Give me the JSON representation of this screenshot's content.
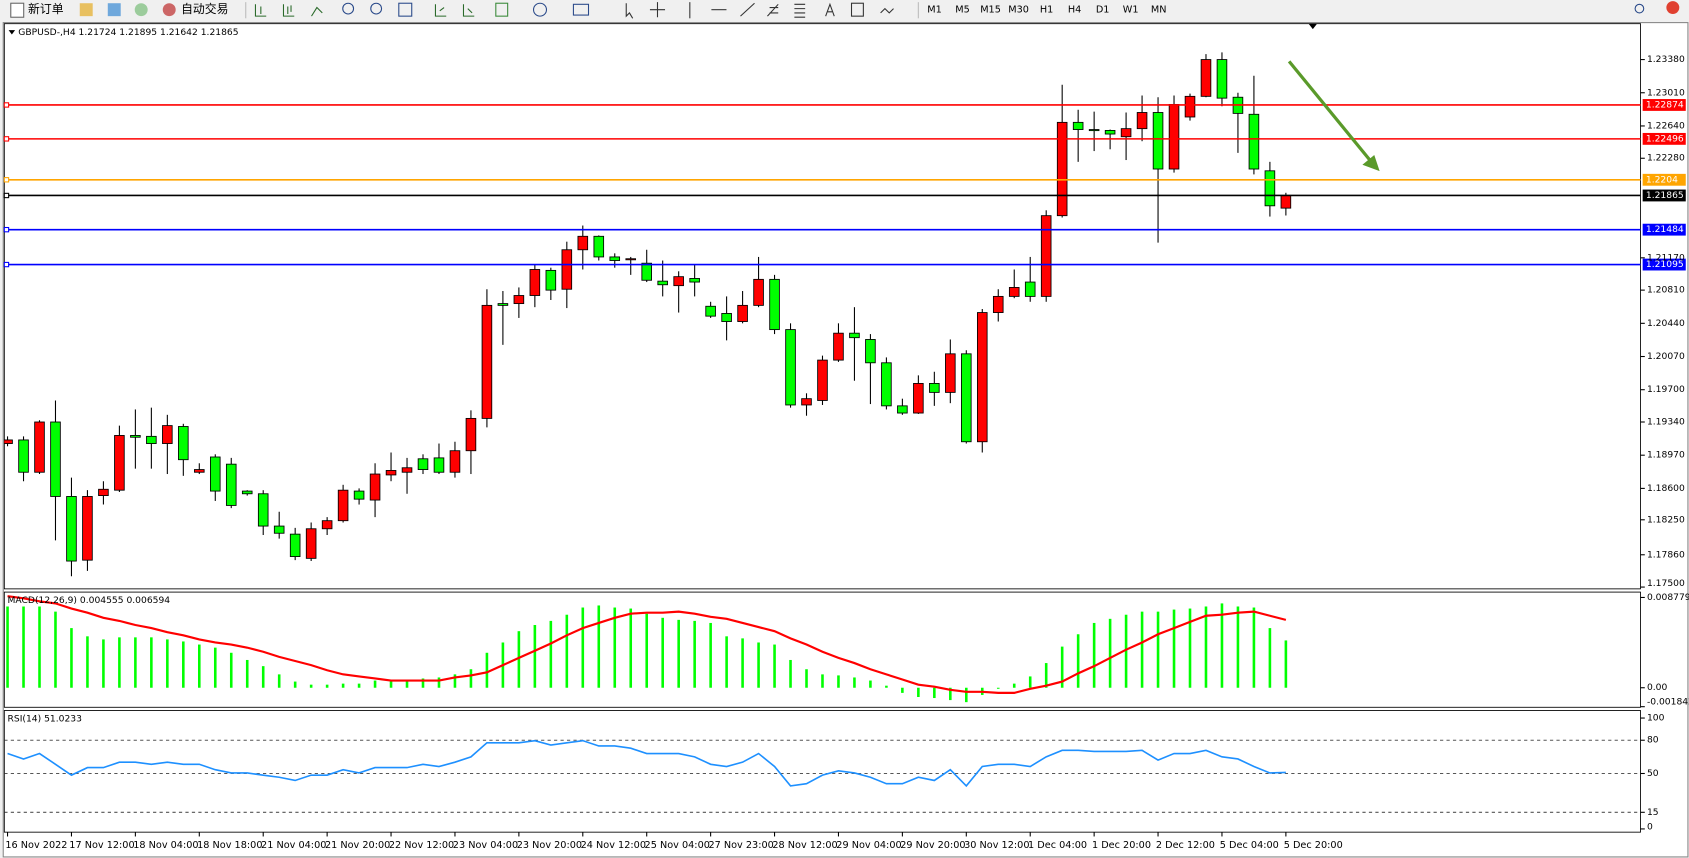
{
  "toolbar": {
    "buttons": [
      "新订单",
      "自动交易"
    ],
    "timeframes": [
      "M1",
      "M5",
      "M15",
      "M30",
      "H1",
      "H4",
      "D1",
      "W1",
      "MN"
    ]
  },
  "chart_data": [
    {
      "type": "candlestick",
      "title": "GBPUSD-,H4  1.21724 1.21895 1.21642 1.21865",
      "categories": [
        "16 Nov 2022",
        null,
        null,
        null,
        "17 Nov 12:00",
        null,
        null,
        null,
        "18 Nov 04:00",
        null,
        null,
        null,
        "18 Nov 18:00",
        null,
        null,
        null,
        "21 Nov 04:00",
        null,
        null,
        null,
        "21 Nov 20:00",
        null,
        null,
        null,
        "22 Nov 12:00",
        null,
        null,
        null,
        "23 Nov 04:00",
        null,
        null,
        null,
        "23 Nov 20:00",
        null,
        null,
        null,
        "24 Nov 12:00",
        null,
        null,
        null,
        "25 Nov 04:00",
        null,
        null,
        null,
        "27 Nov 23:00",
        null,
        null,
        null,
        "28 Nov 12:00",
        null,
        null,
        null,
        "29 Nov 04:00",
        null,
        null,
        null,
        "29 Nov 20:00",
        null,
        null,
        null,
        "30 Nov 12:00",
        null,
        null,
        null,
        "1 Dec 04:00",
        null,
        null,
        null,
        "1 Dec 20:00",
        null,
        null,
        null,
        "2 Dec 12:00",
        null,
        null,
        null,
        "5 Dec 04:00",
        null,
        null,
        null,
        "5 Dec 20:00"
      ],
      "ohlc": [
        [
          1.191,
          1.1918,
          1.1907,
          1.1914
        ],
        [
          1.1914,
          1.1918,
          1.1868,
          1.1878
        ],
        [
          1.1878,
          1.1936,
          1.1876,
          1.1934
        ],
        [
          1.1934,
          1.1958,
          1.1802,
          1.1851
        ],
        [
          1.1851,
          1.1872,
          1.1762,
          1.1779
        ],
        [
          1.178,
          1.1858,
          1.1768,
          1.1851
        ],
        [
          1.1852,
          1.1868,
          1.1842,
          1.1859
        ],
        [
          1.1858,
          1.193,
          1.1856,
          1.1919
        ],
        [
          1.1919,
          1.1948,
          1.1882,
          1.1917
        ],
        [
          1.1918,
          1.195,
          1.1882,
          1.191
        ],
        [
          1.191,
          1.1942,
          1.1876,
          1.193
        ],
        [
          1.1929,
          1.1932,
          1.1874,
          1.1892
        ],
        [
          1.1878,
          1.1888,
          1.1876,
          1.1881
        ],
        [
          1.1895,
          1.1898,
          1.1846,
          1.1857
        ],
        [
          1.1887,
          1.1894,
          1.1838,
          1.1841
        ],
        [
          1.1857,
          1.1858,
          1.1852,
          1.1854
        ],
        [
          1.1854,
          1.1858,
          1.1808,
          1.1818
        ],
        [
          1.1818,
          1.1834,
          1.1804,
          1.181
        ],
        [
          1.1809,
          1.1816,
          1.178,
          1.1784
        ],
        [
          1.1782,
          1.1822,
          1.1779,
          1.1815
        ],
        [
          1.1815,
          1.1828,
          1.1808,
          1.1824
        ],
        [
          1.1824,
          1.1864,
          1.1822,
          1.1858
        ],
        [
          1.1857,
          1.186,
          1.1842,
          1.1848
        ],
        [
          1.1847,
          1.1888,
          1.1828,
          1.1876
        ],
        [
          1.1875,
          1.19,
          1.1868,
          1.188
        ],
        [
          1.1878,
          1.1894,
          1.1854,
          1.1883
        ],
        [
          1.1893,
          1.1898,
          1.1876,
          1.1881
        ],
        [
          1.1894,
          1.191,
          1.1876,
          1.1878
        ],
        [
          1.1878,
          1.1912,
          1.1872,
          1.1902
        ],
        [
          1.1902,
          1.1947,
          1.1876,
          1.1938
        ],
        [
          1.1938,
          1.2082,
          1.1928,
          1.2064
        ],
        [
          1.2066,
          1.208,
          1.202,
          1.2064
        ],
        [
          1.2066,
          1.2084,
          1.205,
          1.2075
        ],
        [
          1.2075,
          1.211,
          1.2062,
          1.2104
        ],
        [
          1.2103,
          1.2106,
          1.207,
          1.2081
        ],
        [
          1.2082,
          1.2135,
          1.2061,
          1.2126
        ],
        [
          1.2126,
          1.2153,
          1.2104,
          1.2141
        ],
        [
          1.2141,
          1.2142,
          1.2114,
          1.2118
        ],
        [
          1.2118,
          1.2122,
          1.2106,
          1.2114
        ],
        [
          1.2115,
          1.2118,
          1.2098,
          1.2116
        ],
        [
          1.2111,
          1.2126,
          1.209,
          1.2092
        ],
        [
          1.2091,
          1.2114,
          1.2074,
          1.2087
        ],
        [
          1.2086,
          1.2102,
          1.2056,
          1.2096
        ],
        [
          1.2094,
          1.2109,
          1.2074,
          1.209
        ],
        [
          1.2063,
          1.2068,
          1.205,
          1.2052
        ],
        [
          1.2055,
          1.2074,
          1.2025,
          1.2046
        ],
        [
          1.2046,
          1.208,
          1.2044,
          1.2064
        ],
        [
          1.2064,
          1.2118,
          1.2062,
          1.2093
        ],
        [
          1.2093,
          1.2098,
          1.2032,
          1.2037
        ],
        [
          1.2037,
          1.2044,
          1.195,
          1.1953
        ],
        [
          1.1953,
          1.1966,
          1.1941,
          1.196
        ],
        [
          1.1958,
          1.2008,
          1.1953,
          1.2003
        ],
        [
          1.2003,
          1.2044,
          1.2001,
          1.2033
        ],
        [
          1.2033,
          1.2062,
          1.198,
          1.2028
        ],
        [
          1.2026,
          1.2032,
          1.1954,
          1.2
        ],
        [
          1.2,
          1.2006,
          1.1948,
          1.1952
        ],
        [
          1.1952,
          1.196,
          1.1942,
          1.1944
        ],
        [
          1.1944,
          1.1986,
          1.1943,
          1.1977
        ],
        [
          1.1977,
          1.199,
          1.1952,
          1.1967
        ],
        [
          1.1967,
          1.2026,
          1.1955,
          1.201
        ],
        [
          1.201,
          1.2014,
          1.191,
          1.1912
        ],
        [
          1.1912,
          1.206,
          1.19,
          1.2056
        ],
        [
          1.2056,
          1.2082,
          1.2046,
          1.2074
        ],
        [
          1.2074,
          1.2104,
          1.2072,
          1.2084
        ],
        [
          1.209,
          1.2118,
          1.2068,
          1.2074
        ],
        [
          1.2074,
          1.217,
          1.2068,
          1.2164
        ],
        [
          1.2164,
          1.231,
          1.2162,
          1.2268
        ],
        [
          1.2268,
          1.2282,
          1.2224,
          1.226
        ],
        [
          1.226,
          1.228,
          1.2236,
          1.2259
        ],
        [
          1.2259,
          1.226,
          1.2238,
          1.2255
        ],
        [
          1.2252,
          1.2279,
          1.2226,
          1.2261
        ],
        [
          1.2261,
          1.2298,
          1.2247,
          1.2279
        ],
        [
          1.2279,
          1.2296,
          1.2134,
          1.2216
        ],
        [
          1.2216,
          1.2298,
          1.2212,
          1.2288
        ],
        [
          1.2274,
          1.23,
          1.227,
          1.2297
        ],
        [
          1.2297,
          1.2344,
          1.2296,
          1.2338
        ],
        [
          1.2338,
          1.2346,
          1.2286,
          1.2295
        ],
        [
          1.2296,
          1.2301,
          1.2234,
          1.2278
        ],
        [
          1.2277,
          1.232,
          1.221,
          1.2216
        ],
        [
          1.2214,
          1.2224,
          1.2163,
          1.2175
        ],
        [
          1.21724,
          1.21895,
          1.21642,
          1.21865
        ]
      ],
      "up_color": "#ff0000",
      "down_color": "#00ff00",
      "ylim": [
        1.1748,
        1.2378
      ],
      "yticks": [
        {
          "value": 1.2338,
          "label": "1.23380"
        },
        {
          "value": 1.2301,
          "label": "1.23010"
        },
        {
          "value": 1.2264,
          "label": "1.22640"
        },
        {
          "value": 1.2228,
          "label": "1.22280"
        },
        {
          "value": 1.2117,
          "label": "1.21170"
        },
        {
          "value": 1.2081,
          "label": "1.20810"
        },
        {
          "value": 1.2044,
          "label": "1.20440"
        },
        {
          "value": 1.2007,
          "label": "1.20070"
        },
        {
          "value": 1.197,
          "label": "1.19700"
        },
        {
          "value": 1.1934,
          "label": "1.19340"
        },
        {
          "value": 1.1897,
          "label": "1.18970"
        },
        {
          "value": 1.186,
          "label": "1.18600"
        },
        {
          "value": 1.1825,
          "label": "1.18250"
        },
        {
          "value": 1.1786,
          "label": "1.17860"
        },
        {
          "value": 1.175,
          "label": "1.17500"
        }
      ],
      "levels": [
        {
          "value": 1.22874,
          "color": "#ff0000"
        },
        {
          "value": 1.22496,
          "color": "#ff0000"
        },
        {
          "value": 1.2204,
          "color": "#ffa500"
        },
        {
          "value": 1.21865,
          "color": "#000000"
        },
        {
          "value": 1.21484,
          "color": "#0000ff"
        },
        {
          "value": 1.21095,
          "color": "#0000ff"
        }
      ]
    },
    {
      "type": "macd",
      "title": "MACD(12,26,9) 0.004555 0.006594",
      "histogram": [
        0.0079,
        0.0079,
        0.0079,
        0.0074,
        0.0058,
        0.005,
        0.0047,
        0.0049,
        0.0049,
        0.0049,
        0.0047,
        0.0045,
        0.0042,
        0.0039,
        0.0034,
        0.0027,
        0.0021,
        0.0013,
        0.0006,
        0.0003,
        0.0003,
        0.0004,
        0.0004,
        0.0007,
        0.0007,
        0.0007,
        0.0009,
        0.001,
        0.0013,
        0.0018,
        0.0034,
        0.0044,
        0.0055,
        0.0061,
        0.0065,
        0.0071,
        0.0078,
        0.008,
        0.0078,
        0.0077,
        0.0072,
        0.0068,
        0.0066,
        0.0065,
        0.0063,
        0.005,
        0.0048,
        0.0044,
        0.0042,
        0.0027,
        0.0018,
        0.0013,
        0.0012,
        0.001,
        0.0007,
        0.0002,
        -0.0005,
        -0.0009,
        -0.001,
        -0.0012,
        -0.0014,
        -0.0007,
        -0.0001,
        0.0004,
        0.0011,
        0.0024,
        0.004,
        0.0052,
        0.0063,
        0.0067,
        0.0071,
        0.0074,
        0.0074,
        0.0076,
        0.0077,
        0.0079,
        0.0082,
        0.0079,
        0.0078,
        0.0058,
        0.0046
      ],
      "signal": [
        0.0089,
        0.0087,
        0.0084,
        0.0082,
        0.0077,
        0.0073,
        0.0068,
        0.0065,
        0.0061,
        0.0058,
        0.0054,
        0.0051,
        0.0047,
        0.0044,
        0.0042,
        0.0039,
        0.0035,
        0.003,
        0.0026,
        0.0022,
        0.0017,
        0.0013,
        0.0011,
        0.0009,
        0.0007,
        0.0007,
        0.0007,
        0.0007,
        0.001,
        0.0012,
        0.0015,
        0.0022,
        0.0029,
        0.0036,
        0.0043,
        0.0051,
        0.0058,
        0.0063,
        0.0068,
        0.0072,
        0.0073,
        0.0073,
        0.0074,
        0.0072,
        0.0069,
        0.0067,
        0.0063,
        0.0059,
        0.0055,
        0.0048,
        0.0042,
        0.0035,
        0.0029,
        0.0024,
        0.0018,
        0.0013,
        0.0008,
        0.0003,
        0.0001,
        -0.0002,
        -0.0004,
        -0.0004,
        -0.0005,
        -0.0005,
        -0.0001,
        0.0002,
        0.0006,
        0.0014,
        0.0021,
        0.0029,
        0.0037,
        0.0044,
        0.0052,
        0.0058,
        0.0064,
        0.007,
        0.0071,
        0.0073,
        0.0074,
        0.007,
        0.0066
      ],
      "histogram_color": "#00ff00",
      "signal_color": "#ff0000",
      "ylim": [
        -0.0019,
        0.0093
      ],
      "yticks": [
        0.008779,
        {
          "value": 0,
          "label": "0.00"
        },
        -0.001842
      ]
    },
    {
      "type": "line",
      "title": "RSI(14) 51.0233",
      "values": [
        68.0,
        63.1,
        68.0,
        58.3,
        48.5,
        55.3,
        55.3,
        60.2,
        60.2,
        58.3,
        60.2,
        58.3,
        58.3,
        53.4,
        50.5,
        50.5,
        48.5,
        46.6,
        43.7,
        48.5,
        48.5,
        53.4,
        50.5,
        55.3,
        55.3,
        55.3,
        58.3,
        56.3,
        60.2,
        65.0,
        77.7,
        77.7,
        77.7,
        79.6,
        75.7,
        77.7,
        79.6,
        74.8,
        74.8,
        72.8,
        68.0,
        68.0,
        68.0,
        65.0,
        58.3,
        56.3,
        60.2,
        68.0,
        56.3,
        38.8,
        40.8,
        48.5,
        52.4,
        50.5,
        46.6,
        40.8,
        40.8,
        46.6,
        43.7,
        53.4,
        38.8,
        56.3,
        58.3,
        58.3,
        56.3,
        65.0,
        70.9,
        70.9,
        69.9,
        69.9,
        69.9,
        70.9,
        62.1,
        68.0,
        68.0,
        70.9,
        65.0,
        63.1,
        56.3,
        50.5,
        51.0
      ],
      "color": "#1e90ff",
      "ylim": [
        0,
        100
      ],
      "yticks": [
        100,
        80,
        50,
        15,
        0
      ],
      "levels": [
        80,
        50,
        15
      ]
    }
  ]
}
